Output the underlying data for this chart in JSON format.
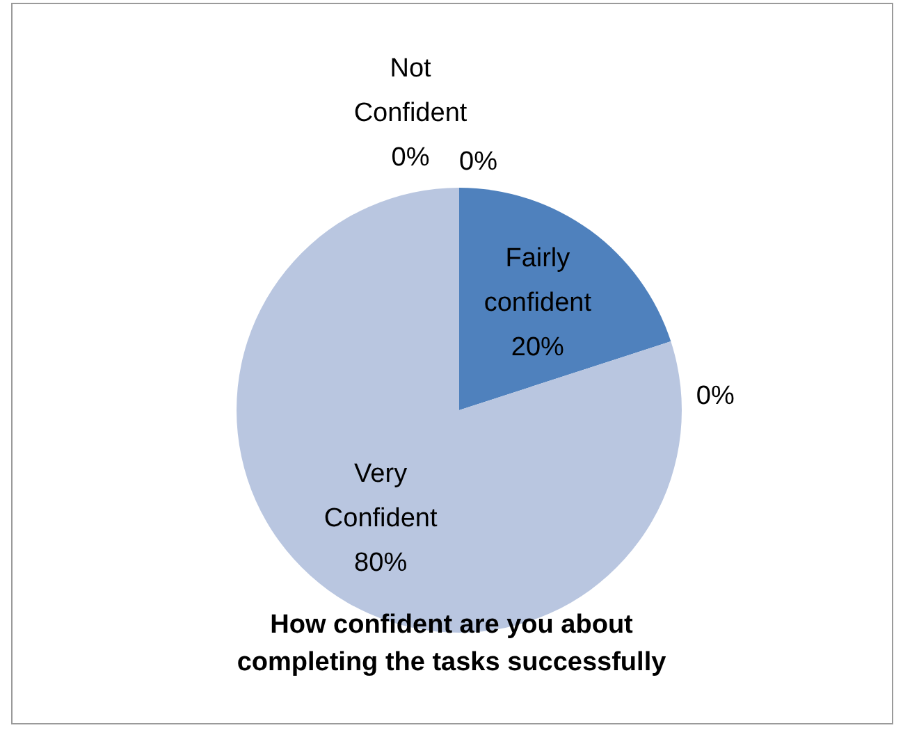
{
  "chart_data": {
    "type": "pie",
    "title": "How confident  are you about\ncompleting the tasks successfully",
    "categories": [
      null,
      "Fairly confident",
      null,
      "Very Confident",
      "Not Confident"
    ],
    "values": [
      0,
      20,
      0,
      80,
      0
    ],
    "colors": [
      "#95b3d7",
      "#4f81bd",
      "#c0d0e8",
      "#b9c6e0",
      "#7f9fcf"
    ],
    "value_labels": [
      "0%",
      "20%",
      "0%",
      "80%",
      "0%"
    ]
  }
}
